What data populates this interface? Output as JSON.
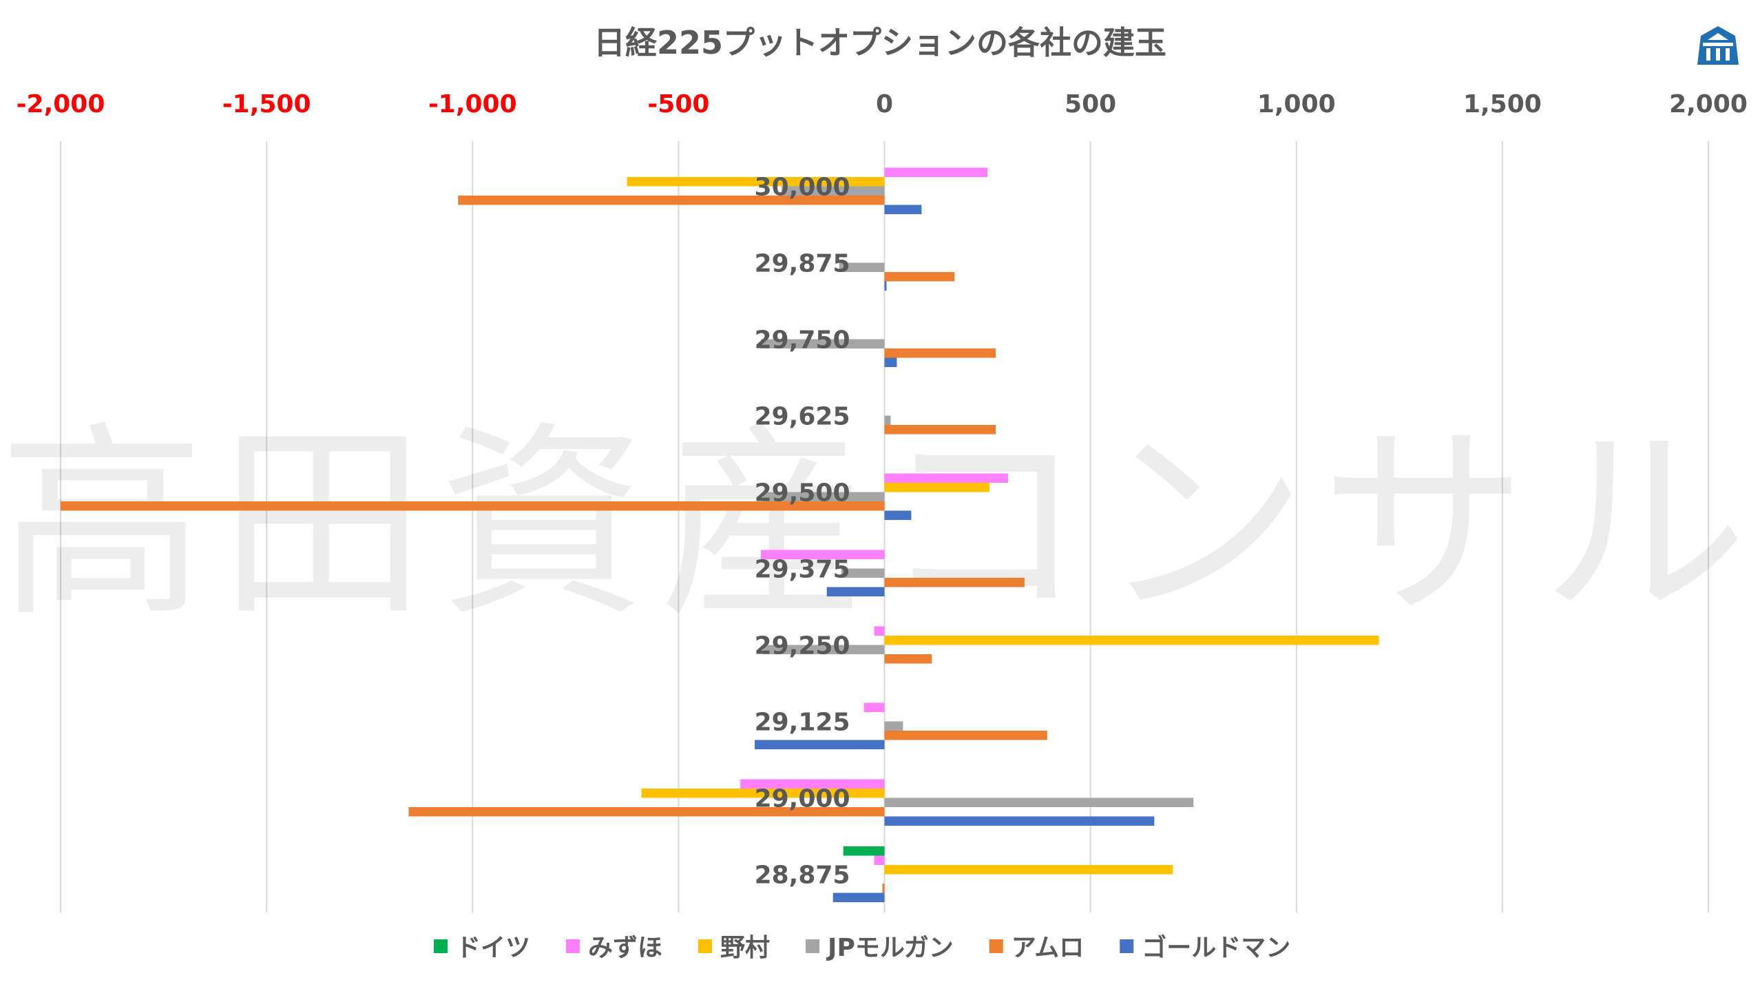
{
  "chart_data": {
    "type": "bar",
    "orientation": "horizontal",
    "title": "日経225プットオプションの各社の建玉",
    "xlim": [
      -2000,
      2000
    ],
    "xticks": [
      -2000,
      -1500,
      -1000,
      -500,
      0,
      500,
      1000,
      1500,
      2000
    ],
    "xtick_labels": [
      "-2,000",
      "-1,500",
      "-1,000",
      "-500",
      "0",
      "500",
      "1,000",
      "1,500",
      "2,000"
    ],
    "negative_tick_color": "#ff0000",
    "positive_tick_color": "#595959",
    "grid": true,
    "legend_position": "bottom",
    "categories": [
      "30,000",
      "29,875",
      "29,750",
      "29,625",
      "29,500",
      "29,375",
      "29,250",
      "29,125",
      "29,000",
      "28,875"
    ],
    "series": [
      {
        "name": "ドイツ",
        "color": "#00b050",
        "values": [
          0,
          0,
          0,
          0,
          0,
          0,
          0,
          0,
          0,
          -100
        ]
      },
      {
        "name": "みずほ",
        "color": "#ff80ff",
        "values": [
          250,
          0,
          0,
          0,
          300,
          -300,
          -25,
          -50,
          -350,
          -25
        ]
      },
      {
        "name": "野村",
        "color": "#ffc000",
        "values": [
          -625,
          0,
          0,
          0,
          255,
          0,
          1200,
          0,
          -590,
          700
        ]
      },
      {
        "name": "JPモルガン",
        "color": "#a5a5a5",
        "values": [
          -250,
          -110,
          -300,
          15,
          -295,
          -105,
          -295,
          45,
          750,
          0
        ]
      },
      {
        "name": "アムロ",
        "color": "#ed7d31",
        "values": [
          -1035,
          170,
          270,
          270,
          -2000,
          340,
          115,
          395,
          -1155,
          -5
        ]
      },
      {
        "name": "ゴールドマン",
        "color": "#4472c4",
        "values": [
          90,
          5,
          30,
          0,
          65,
          -140,
          0,
          -315,
          655,
          -125
        ]
      }
    ]
  },
  "watermark": "高田資産コンサル",
  "logo": {
    "icon": "company-building-logo-icon",
    "color": "#1f6fb2"
  }
}
